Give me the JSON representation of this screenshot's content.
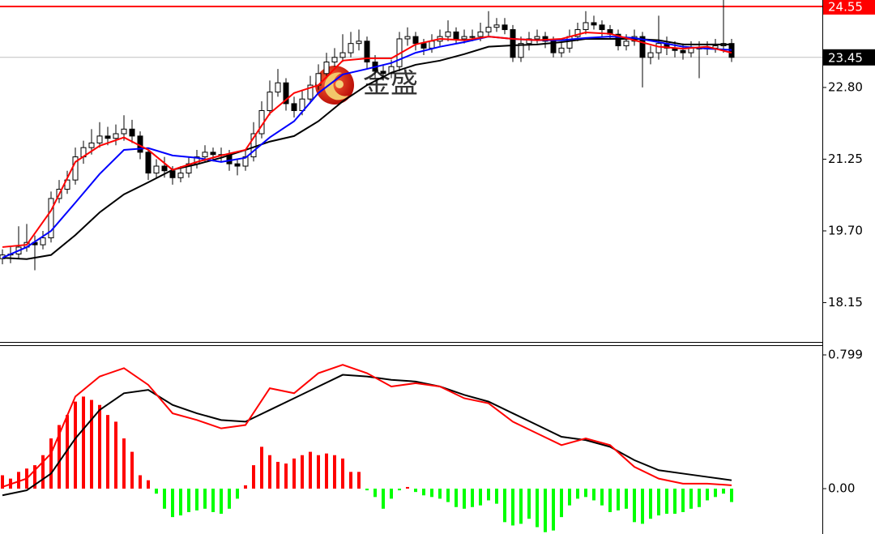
{
  "chart_data": [
    {
      "type": "candlestick",
      "watermark": "金盛",
      "ylim": [
        17.3,
        24.69
      ],
      "yticks": [
        {
          "value": 22.8,
          "label": "22.80"
        },
        21.25,
        {
          "value": 19.7,
          "label": "19.70"
        },
        18.15
      ],
      "price_lines": [
        {
          "value": 24.55,
          "color": "#ff0000",
          "line_color": "#ff0000"
        },
        {
          "value": 23.45,
          "color": "#000000",
          "line_color": "#c0c0c0"
        }
      ],
      "open": [
        19.1,
        19.18,
        19.2,
        19.35,
        19.45,
        19.4,
        19.55,
        20.4,
        20.6,
        20.8,
        21.3,
        21.5,
        21.6,
        21.75,
        21.7,
        21.8,
        21.9,
        21.75,
        21.4,
        20.95,
        21.1,
        21.0,
        20.85,
        20.95,
        21.15,
        21.3,
        21.4,
        21.35,
        21.35,
        21.15,
        21.1,
        21.3,
        21.8,
        22.3,
        22.7,
        22.9,
        22.45,
        22.3,
        22.55,
        22.85,
        23.1,
        23.35,
        23.45,
        23.55,
        23.75,
        23.8,
        23.35,
        23.15,
        23.1,
        23.25,
        23.85,
        23.9,
        23.75,
        23.65,
        23.8,
        23.9,
        24.0,
        23.85,
        23.9,
        23.9,
        24.0,
        24.1,
        24.15,
        24.05,
        23.45,
        23.75,
        23.85,
        23.9,
        23.8,
        23.55,
        23.65,
        23.9,
        24.05,
        24.2,
        24.15,
        24.05,
        23.95,
        23.7,
        23.8,
        23.9,
        23.45,
        23.55,
        23.75,
        23.65,
        23.6,
        23.55,
        23.65,
        23.65,
        23.65,
        23.7,
        23.75
      ],
      "high": [
        19.3,
        19.35,
        19.8,
        19.85,
        19.6,
        19.7,
        20.55,
        20.8,
        21.0,
        21.5,
        21.65,
        21.9,
        22.05,
        21.95,
        22.0,
        22.2,
        22.1,
        21.85,
        21.5,
        21.25,
        21.3,
        21.1,
        21.1,
        21.3,
        21.45,
        21.55,
        21.5,
        21.5,
        21.45,
        21.25,
        21.45,
        22.05,
        22.5,
        22.95,
        23.2,
        23.0,
        22.6,
        22.75,
        23.05,
        23.3,
        23.55,
        23.65,
        23.95,
        24.0,
        24.05,
        23.9,
        23.5,
        23.3,
        23.4,
        24.0,
        24.1,
        24.0,
        23.85,
        23.95,
        24.05,
        24.25,
        24.1,
        24.05,
        24.05,
        24.2,
        24.45,
        24.3,
        24.3,
        24.15,
        23.9,
        24.0,
        24.05,
        24.0,
        23.9,
        23.8,
        24.05,
        24.2,
        24.45,
        24.35,
        24.25,
        24.15,
        24.05,
        23.95,
        24.05,
        24.0,
        23.7,
        24.35,
        23.9,
        23.8,
        23.75,
        23.8,
        23.8,
        23.8,
        23.85,
        24.75,
        23.85
      ],
      "low": [
        18.98,
        19.0,
        19.1,
        19.25,
        18.85,
        19.3,
        19.45,
        20.3,
        20.5,
        20.7,
        21.15,
        21.35,
        21.5,
        21.55,
        21.55,
        21.65,
        21.6,
        21.25,
        20.8,
        20.85,
        20.85,
        20.7,
        20.75,
        20.85,
        21.05,
        21.2,
        21.2,
        21.2,
        21.0,
        20.9,
        21.0,
        21.2,
        21.7,
        22.2,
        22.6,
        22.3,
        22.15,
        22.2,
        22.45,
        22.75,
        23.0,
        23.25,
        23.35,
        23.45,
        23.6,
        23.2,
        23.0,
        22.95,
        23.0,
        23.15,
        23.7,
        23.6,
        23.5,
        23.55,
        23.7,
        23.8,
        23.75,
        23.75,
        23.8,
        23.8,
        23.9,
        24.0,
        23.95,
        23.35,
        23.35,
        23.6,
        23.75,
        23.65,
        23.45,
        23.45,
        23.55,
        23.8,
        23.95,
        24.05,
        23.9,
        23.85,
        23.6,
        23.6,
        23.7,
        22.8,
        23.3,
        23.4,
        23.5,
        23.45,
        23.4,
        23.45,
        23.0,
        23.5,
        23.55,
        23.55,
        23.35
      ],
      "close": [
        19.18,
        19.2,
        19.35,
        19.45,
        19.4,
        19.55,
        20.4,
        20.6,
        20.8,
        21.3,
        21.5,
        21.6,
        21.75,
        21.7,
        21.8,
        21.9,
        21.75,
        21.4,
        20.95,
        21.1,
        21.0,
        20.85,
        20.95,
        21.15,
        21.3,
        21.4,
        21.35,
        21.35,
        21.15,
        21.1,
        21.3,
        21.8,
        22.3,
        22.7,
        22.9,
        22.45,
        22.3,
        22.55,
        22.85,
        23.1,
        23.35,
        23.45,
        23.55,
        23.75,
        23.8,
        23.35,
        23.15,
        23.1,
        23.25,
        23.85,
        23.9,
        23.75,
        23.65,
        23.8,
        23.9,
        24.0,
        23.85,
        23.9,
        23.9,
        24.0,
        24.1,
        24.15,
        24.05,
        23.45,
        23.75,
        23.85,
        23.9,
        23.8,
        23.55,
        23.65,
        23.9,
        24.05,
        24.2,
        24.15,
        24.05,
        23.95,
        23.7,
        23.8,
        23.9,
        23.45,
        23.55,
        23.75,
        23.65,
        23.6,
        23.55,
        23.65,
        23.65,
        23.65,
        23.7,
        23.75,
        23.45
      ],
      "series": [
        {
          "color": "#000000",
          "x": [
            0,
            3,
            6,
            9,
            12,
            15,
            18,
            21,
            24,
            27,
            30,
            33,
            36,
            39,
            42,
            45,
            48,
            51,
            54,
            57,
            60,
            63,
            66,
            69,
            72,
            75,
            78,
            81,
            84,
            87,
            90
          ],
          "values": [
            19.12,
            19.09,
            19.18,
            19.61,
            20.1,
            20.49,
            20.75,
            21.02,
            21.14,
            21.28,
            21.45,
            21.63,
            21.75,
            22.07,
            22.5,
            22.85,
            23.12,
            23.29,
            23.38,
            23.52,
            23.68,
            23.71,
            23.73,
            23.78,
            23.85,
            23.85,
            23.85,
            23.82,
            23.73,
            23.73,
            23.73
          ]
        },
        {
          "color": "#0000ff",
          "x": [
            0,
            3,
            6,
            9,
            12,
            15,
            18,
            21,
            24,
            27,
            30,
            33,
            36,
            39,
            42,
            45,
            48,
            51,
            54,
            57,
            60,
            63,
            66,
            69,
            72,
            75,
            78,
            81,
            84,
            87,
            90
          ],
          "values": [
            19.12,
            19.35,
            19.7,
            20.31,
            20.93,
            21.45,
            21.49,
            21.33,
            21.28,
            21.19,
            21.28,
            21.72,
            22.07,
            22.68,
            23.08,
            23.2,
            23.33,
            23.55,
            23.68,
            23.78,
            23.9,
            23.85,
            23.82,
            23.82,
            23.87,
            23.9,
            23.87,
            23.78,
            23.68,
            23.64,
            23.61
          ]
        },
        {
          "color": "#ff0000",
          "x": [
            0,
            3,
            6,
            9,
            12,
            15,
            18,
            21,
            24,
            27,
            30,
            33,
            36,
            39,
            42,
            45,
            48,
            51,
            54,
            57,
            60,
            63,
            66,
            69,
            72,
            75,
            78,
            81,
            84,
            87,
            90
          ],
          "values": [
            19.35,
            19.4,
            20.14,
            21.19,
            21.54,
            21.72,
            21.45,
            21.02,
            21.19,
            21.33,
            21.45,
            22.24,
            22.68,
            22.85,
            23.38,
            23.43,
            23.43,
            23.73,
            23.85,
            23.82,
            23.9,
            23.85,
            23.82,
            23.85,
            23.99,
            23.96,
            23.82,
            23.68,
            23.64,
            23.68,
            23.55
          ]
        }
      ]
    },
    {
      "type": "macd",
      "ylim": [
        -0.271,
        0.857
      ],
      "yticks": [
        0.799,
        {
          "value": 0,
          "label": "0.00"
        }
      ],
      "up_color": "#ff0000",
      "down_color": "#00ff00",
      "values": [
        0.08,
        0.06,
        0.1,
        0.12,
        0.14,
        0.2,
        0.3,
        0.38,
        0.44,
        0.52,
        0.55,
        0.53,
        0.5,
        0.44,
        0.4,
        0.3,
        0.22,
        0.08,
        0.05,
        -0.03,
        -0.12,
        -0.17,
        -0.16,
        -0.14,
        -0.13,
        -0.12,
        -0.14,
        -0.15,
        -0.12,
        -0.06,
        0.02,
        0.14,
        0.25,
        0.2,
        0.16,
        0.15,
        0.18,
        0.2,
        0.22,
        0.2,
        0.21,
        0.2,
        0.18,
        0.1,
        0.1,
        -0.01,
        -0.05,
        -0.12,
        -0.06,
        -0.01,
        0.01,
        -0.02,
        -0.04,
        -0.05,
        -0.06,
        -0.08,
        -0.11,
        -0.12,
        -0.11,
        -0.1,
        -0.07,
        -0.09,
        -0.2,
        -0.22,
        -0.21,
        -0.18,
        -0.23,
        -0.26,
        -0.25,
        -0.17,
        -0.1,
        -0.06,
        -0.05,
        -0.07,
        -0.1,
        -0.14,
        -0.13,
        -0.12,
        -0.2,
        -0.21,
        -0.18,
        -0.16,
        -0.15,
        -0.15,
        -0.14,
        -0.12,
        -0.11,
        -0.07,
        -0.05,
        -0.03,
        -0.08
      ],
      "series": [
        {
          "color": "#000000",
          "x": [
            0,
            3,
            6,
            9,
            12,
            15,
            18,
            21,
            24,
            27,
            30,
            33,
            36,
            39,
            42,
            45,
            48,
            51,
            54,
            57,
            60,
            63,
            66,
            69,
            72,
            75,
            78,
            81,
            84,
            87,
            90
          ],
          "values": [
            -0.04,
            -0.01,
            0.09,
            0.3,
            0.47,
            0.57,
            0.59,
            0.5,
            0.45,
            0.41,
            0.4,
            0.47,
            0.54,
            0.61,
            0.68,
            0.67,
            0.65,
            0.64,
            0.61,
            0.56,
            0.52,
            0.45,
            0.38,
            0.31,
            0.29,
            0.25,
            0.17,
            0.11,
            0.09,
            0.07,
            0.05
          ]
        },
        {
          "color": "#ff0000",
          "x": [
            0,
            3,
            6,
            9,
            12,
            15,
            18,
            21,
            24,
            27,
            30,
            33,
            36,
            39,
            42,
            45,
            48,
            51,
            54,
            57,
            60,
            63,
            66,
            69,
            72,
            75,
            78,
            81,
            84,
            87,
            90
          ],
          "values": [
            0.01,
            0.06,
            0.21,
            0.55,
            0.67,
            0.72,
            0.62,
            0.45,
            0.41,
            0.36,
            0.38,
            0.6,
            0.57,
            0.69,
            0.74,
            0.69,
            0.61,
            0.63,
            0.61,
            0.54,
            0.51,
            0.4,
            0.33,
            0.26,
            0.3,
            0.26,
            0.13,
            0.06,
            0.03,
            0.03,
            0.02
          ]
        }
      ]
    }
  ]
}
